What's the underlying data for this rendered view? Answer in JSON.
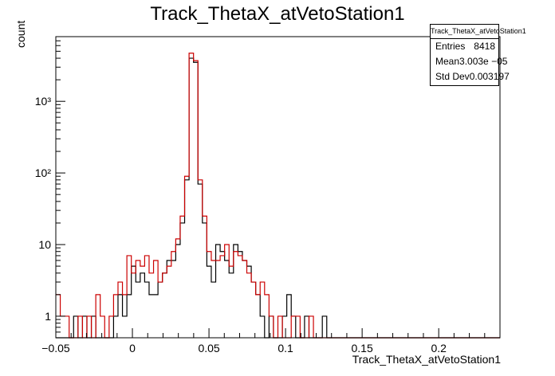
{
  "chart_data": {
    "type": "histogram",
    "title": "Track_ThetaX_atVetoStation1",
    "xlabel": "Track_ThetaX_atVetoStation1",
    "ylabel": "count",
    "xlim": [
      -0.05,
      0.24
    ],
    "ylim": [
      0.5,
      8000
    ],
    "log_y": true,
    "grid": false,
    "bin_width": 0.0029,
    "x_ticks": [
      {
        "value": -0.05,
        "label": "−0.05"
      },
      {
        "value": 0,
        "label": "0"
      },
      {
        "value": 0.05,
        "label": "0.05"
      },
      {
        "value": 0.1,
        "label": "0.1"
      },
      {
        "value": 0.15,
        "label": "0.15"
      },
      {
        "value": 0.2,
        "label": "0.2"
      }
    ],
    "y_ticks": [
      {
        "value": 1,
        "label": "1"
      },
      {
        "value": 10,
        "label": "10"
      },
      {
        "value": 100,
        "label": "10²"
      },
      {
        "value": 1000,
        "label": "10³"
      }
    ],
    "series": [
      {
        "color": "#000000",
        "values": [
          0,
          0,
          0,
          0,
          1,
          0,
          1,
          0,
          1,
          0,
          0,
          0,
          0,
          1,
          2,
          1,
          2,
          5,
          3,
          4,
          3,
          2,
          2,
          3,
          4,
          6,
          6,
          10,
          20,
          80,
          4000,
          3500,
          70,
          20,
          5,
          3,
          10,
          8,
          6,
          4,
          10,
          8,
          6,
          5,
          3,
          2,
          1,
          0,
          1,
          0,
          0,
          1,
          2,
          1,
          0,
          0,
          1,
          0,
          0,
          0,
          1,
          0,
          0,
          0,
          0,
          0,
          0,
          0,
          0,
          0,
          0,
          0,
          0,
          0,
          0,
          0,
          0,
          0,
          0,
          0,
          0,
          0,
          0,
          0,
          0,
          0,
          0,
          0,
          0,
          0,
          0,
          0,
          0,
          0,
          0,
          0,
          0,
          0,
          0,
          0
        ]
      },
      {
        "color": "#cc0000",
        "values": [
          2,
          1,
          1,
          0,
          0,
          1,
          0,
          1,
          0,
          2,
          1,
          0,
          1,
          2,
          3,
          2,
          7,
          4,
          6,
          5,
          7,
          4,
          6,
          3,
          4,
          5,
          8,
          12,
          25,
          90,
          4700,
          3700,
          80,
          25,
          8,
          6,
          6,
          7,
          10,
          5,
          8,
          7,
          6,
          4,
          3,
          2,
          3,
          2,
          1,
          0,
          1,
          0,
          0,
          1,
          1,
          0,
          0,
          1,
          0,
          0,
          0,
          0,
          0,
          0,
          0,
          0,
          0,
          0,
          0,
          0,
          0,
          0,
          0,
          0,
          0,
          0,
          0,
          0,
          0,
          0,
          0,
          0,
          0,
          0,
          0,
          0,
          0,
          0,
          0,
          0,
          0,
          0,
          0,
          0,
          0,
          0,
          0,
          0,
          0,
          0
        ]
      }
    ]
  },
  "stats_box": {
    "title": "Track_ThetaX_atVetoStation1",
    "rows": [
      {
        "label": "Entries",
        "value": "8418"
      },
      {
        "label": "Mean",
        "value": "3.003e −05"
      },
      {
        "label": "Std Dev",
        "value": "0.003197"
      }
    ]
  }
}
